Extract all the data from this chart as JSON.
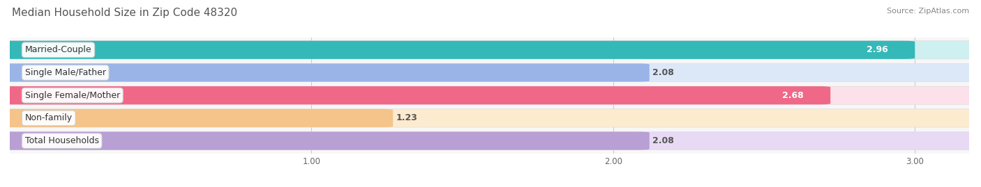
{
  "title": "Median Household Size in Zip Code 48320",
  "source": "Source: ZipAtlas.com",
  "categories": [
    "Married-Couple",
    "Single Male/Father",
    "Single Female/Mother",
    "Non-family",
    "Total Households"
  ],
  "values": [
    2.96,
    2.08,
    2.68,
    1.23,
    2.08
  ],
  "bar_colors": [
    "#35b8b8",
    "#9ab4e8",
    "#f06888",
    "#f5c48a",
    "#b89fd4"
  ],
  "bar_bg_colors": [
    "#cff0f0",
    "#dce8f8",
    "#fce0ea",
    "#fdebd0",
    "#e8daf4"
  ],
  "value_label_inside": [
    true,
    false,
    true,
    false,
    false
  ],
  "xlim": [
    0,
    3.18
  ],
  "xmin": 0,
  "xticks": [
    1.0,
    2.0,
    3.0
  ],
  "background_color": "#ffffff",
  "plot_bg_color": "#f7f7f7",
  "title_fontsize": 11,
  "source_fontsize": 8,
  "label_fontsize": 9,
  "value_fontsize": 9
}
